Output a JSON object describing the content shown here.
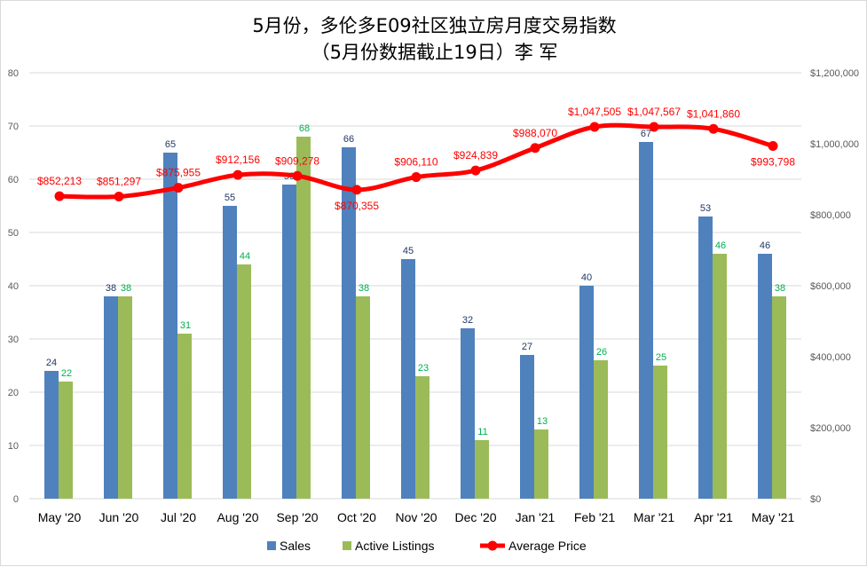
{
  "chart_data": {
    "type": "bar",
    "title": "5月份，多伦多E09社区独立房月度交易指数",
    "subtitle": "（5月份数据截止19日）李 军",
    "categories": [
      "May '20",
      "Jun '20",
      "Jul '20",
      "Aug '20",
      "Sep '20",
      "Oct '20",
      "Nov '20",
      "Dec '20",
      "Jan '21",
      "Feb '21",
      "Mar '21",
      "Apr '21",
      "May '21"
    ],
    "series": [
      {
        "name": "Sales",
        "type": "bar",
        "axis": "left",
        "color": "#4f81bd",
        "label_color": "#1f3864",
        "values": [
          24,
          38,
          65,
          55,
          59,
          66,
          45,
          32,
          27,
          40,
          67,
          53,
          46
        ]
      },
      {
        "name": "Active Listings",
        "type": "bar",
        "axis": "left",
        "color": "#9bbb59",
        "label_color": "#00b050",
        "values": [
          22,
          38,
          31,
          44,
          68,
          38,
          23,
          11,
          13,
          26,
          25,
          46,
          38
        ]
      },
      {
        "name": "Average Price",
        "type": "line",
        "axis": "right",
        "color": "#ff0000",
        "label_color": "#ff0000",
        "values": [
          852213,
          851297,
          875955,
          912156,
          909278,
          870355,
          906110,
          924839,
          988070,
          1047505,
          1047567,
          1041860,
          993798
        ],
        "labels": [
          "$852,213",
          "$851,297",
          "$875,955",
          "$912,156",
          "$909,278",
          "$870,355",
          "$906,110",
          "$924,839",
          "$988,070",
          "$1,047,505",
          "$1,047,567",
          "$1,041,860",
          "$993,798"
        ]
      }
    ],
    "y_left": {
      "min": 0,
      "max": 80,
      "ticks": [
        "0",
        "10",
        "20",
        "30",
        "40",
        "50",
        "60",
        "70",
        "80"
      ]
    },
    "y_right": {
      "min": 0,
      "max": 1200000,
      "ticks": [
        "$0",
        "$200,000",
        "$400,000",
        "$600,000",
        "$800,000",
        "$1,000,000",
        "$1,200,000"
      ]
    },
    "grid": true,
    "legend_position": "bottom"
  }
}
